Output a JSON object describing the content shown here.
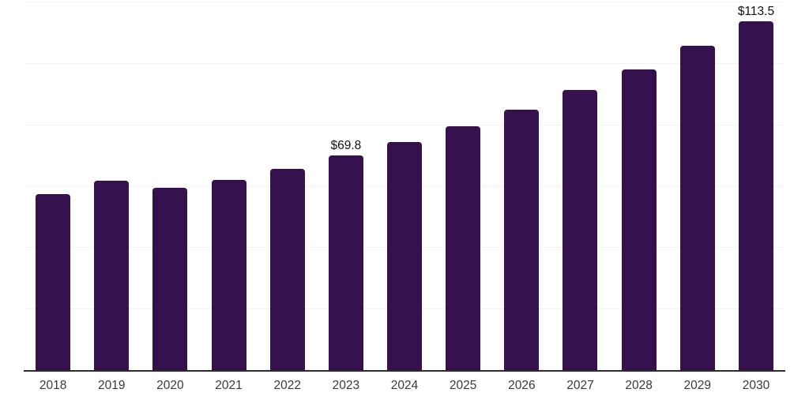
{
  "chart_data": {
    "type": "bar",
    "categories": [
      "2018",
      "2019",
      "2020",
      "2021",
      "2022",
      "2023",
      "2024",
      "2025",
      "2026",
      "2027",
      "2028",
      "2029",
      "2030"
    ],
    "values": [
      57.3,
      61.6,
      59.4,
      62.0,
      65.6,
      69.8,
      74.3,
      79.4,
      84.8,
      91.2,
      97.9,
      105.5,
      113.5
    ],
    "point_labels": [
      null,
      null,
      null,
      null,
      null,
      "$69.8",
      null,
      null,
      null,
      null,
      null,
      null,
      "$113.5"
    ],
    "ylim": [
      0,
      120
    ],
    "gridline_step": 20,
    "grid": true,
    "legend": false,
    "y_axis_labels_visible": false,
    "xlabel": "",
    "ylabel": ""
  },
  "colors": {
    "bar": "#35114E",
    "axis_line": "#2b2b2b",
    "gridline": "#f4f1f3",
    "value_label": "#111111",
    "x_tick_label": "#3a3a3a",
    "background": "#ffffff"
  }
}
